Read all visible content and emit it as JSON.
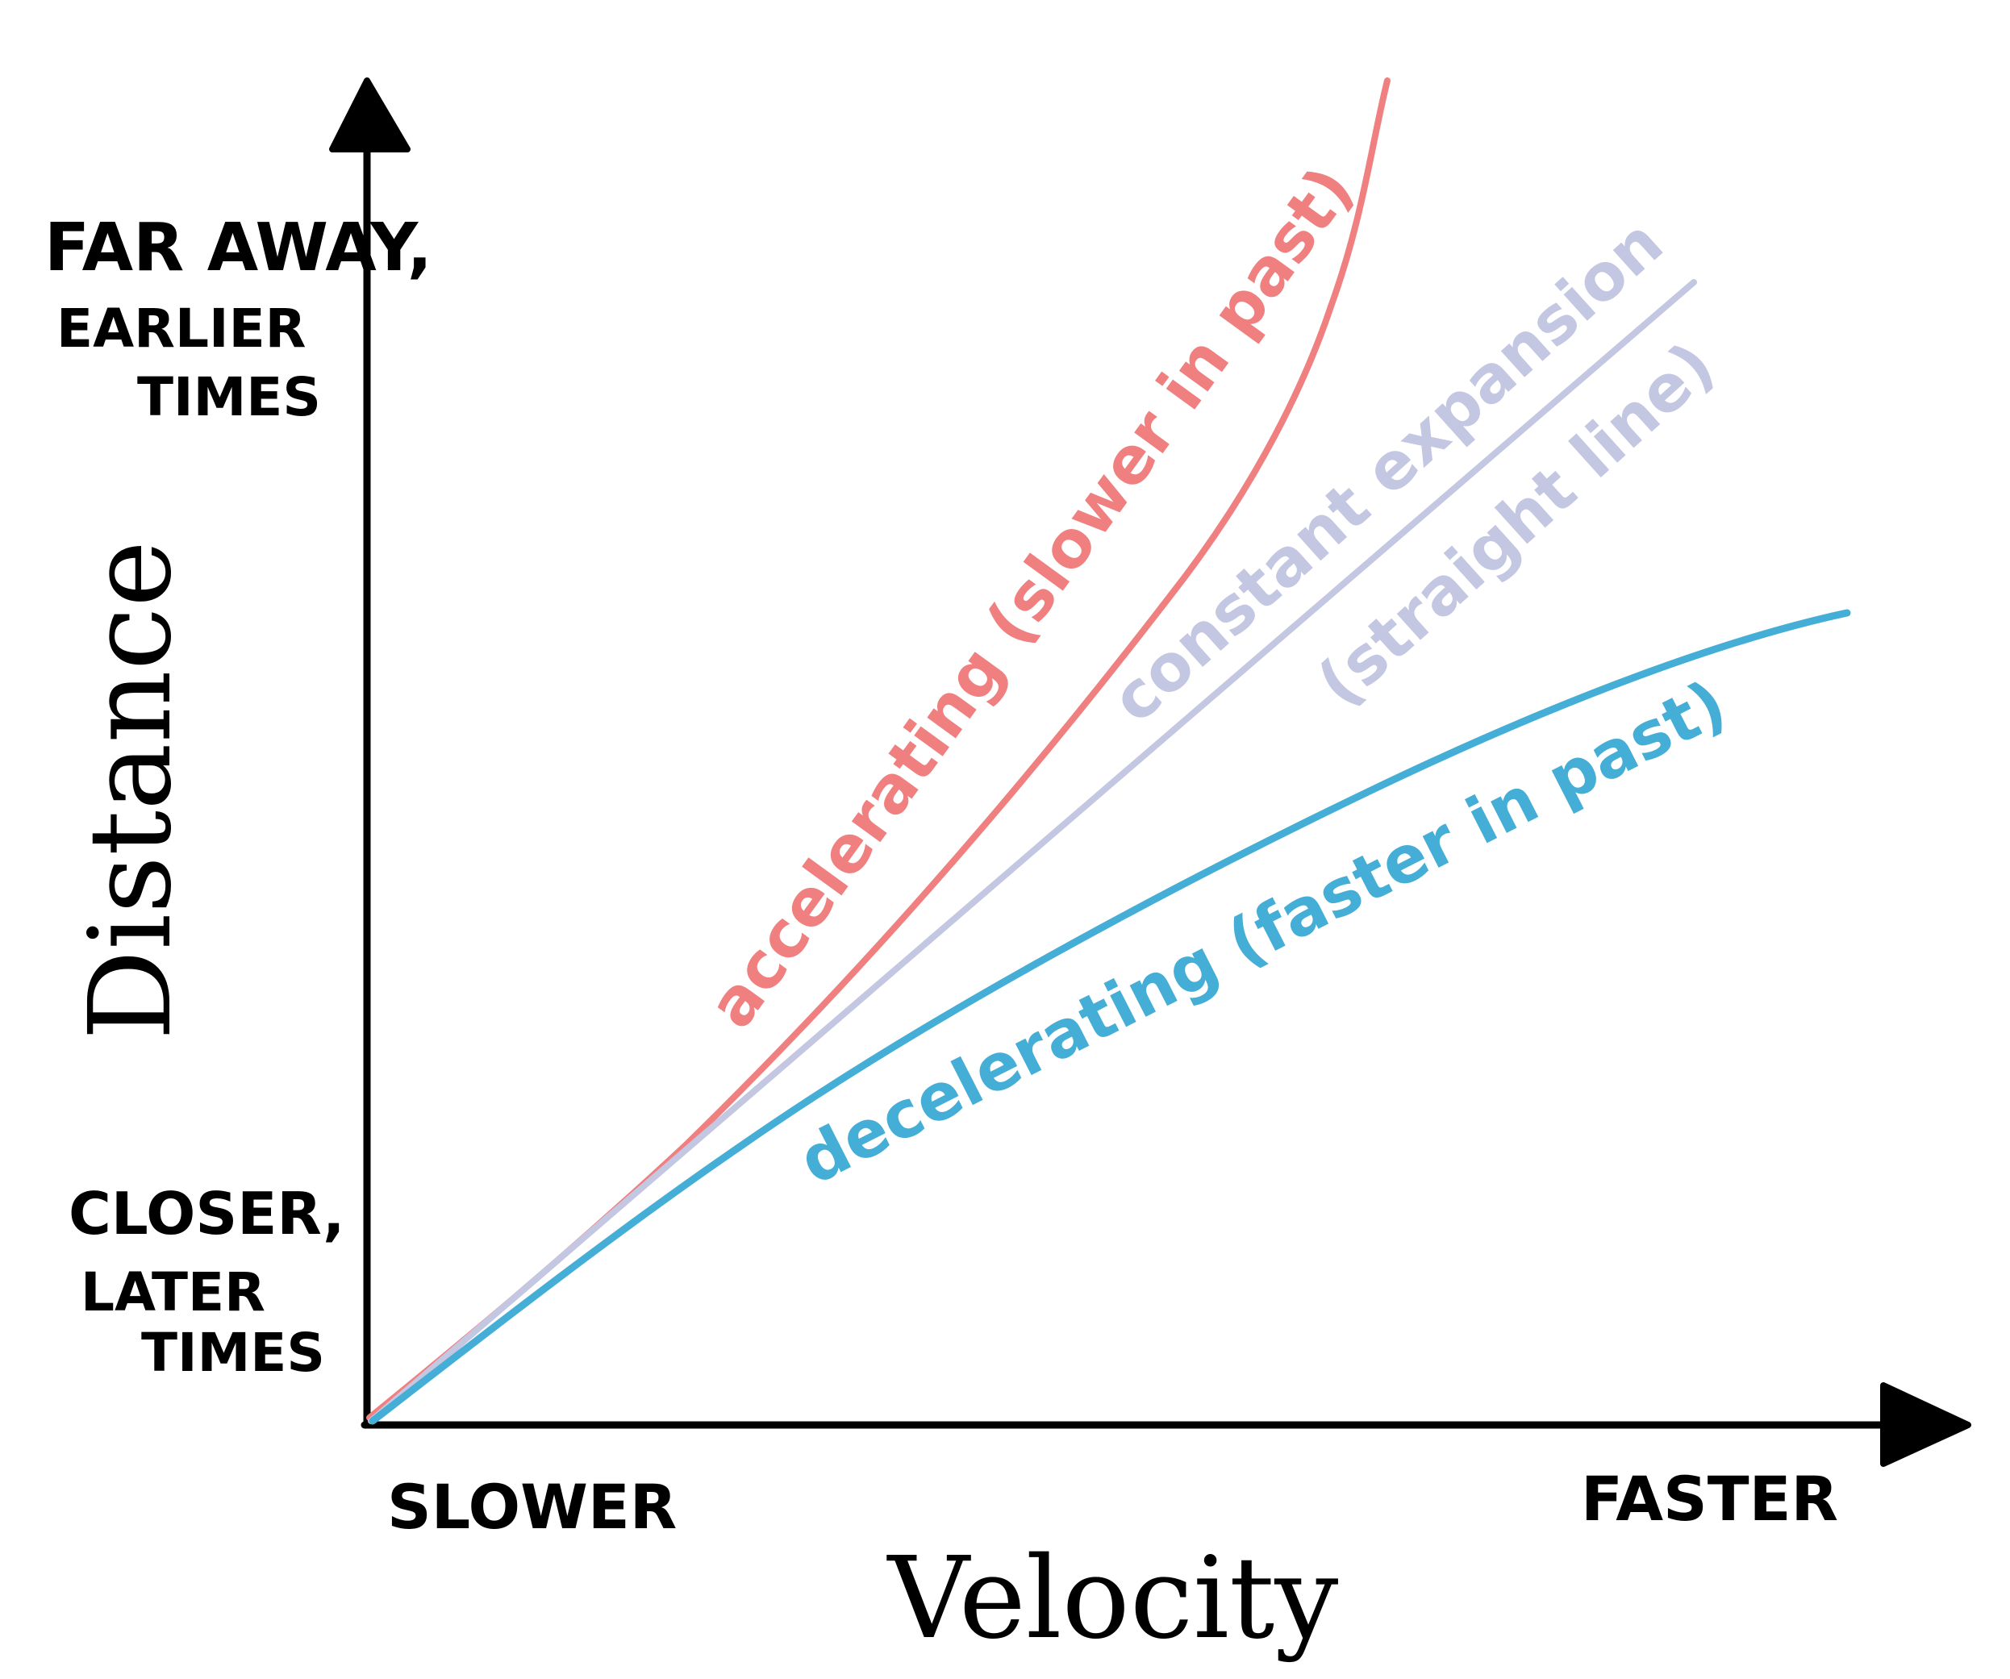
{
  "y_axis": {
    "title": "Distance",
    "top_label_lines": [
      "FAR AWAY,",
      "EARLIER",
      "TIMES"
    ],
    "bottom_label_lines": [
      "CLOSER,",
      "LATER",
      "TIMES"
    ]
  },
  "x_axis": {
    "title": "Velocity",
    "left_label": "SLOWER",
    "right_label": "FASTER"
  },
  "curves": [
    {
      "key": "accelerating",
      "label": "accelerating (slower in past)",
      "color": "#f07f7f"
    },
    {
      "key": "constant",
      "label": "constant expansion",
      "label_line2": "(straight line)",
      "color": "#c3c7e2"
    },
    {
      "key": "decelerating",
      "label": "decelerating (faster in past)",
      "color": "#44aed6"
    }
  ],
  "colors": {
    "axis": "#000000"
  }
}
